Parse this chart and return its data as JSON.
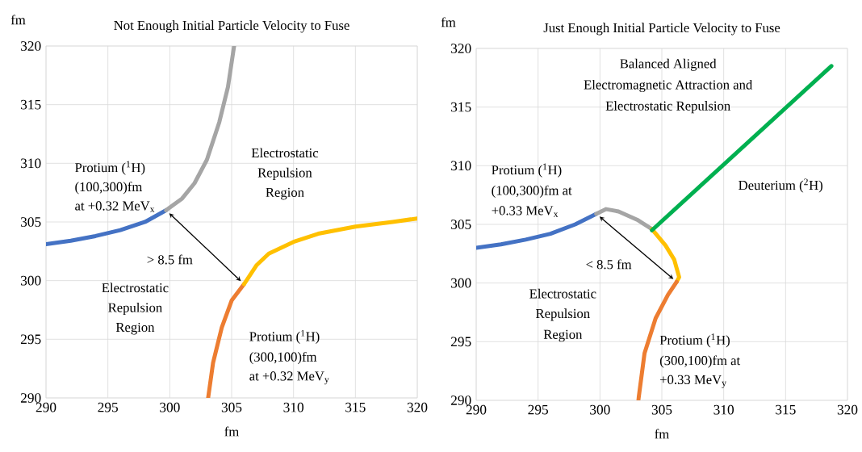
{
  "chart_data": [
    {
      "type": "line",
      "title": "Not Enough Initial Particle Velocity to Fuse",
      "xlabel": "fm",
      "ylabel": "fm",
      "xlim": [
        290,
        320
      ],
      "ylim": [
        290,
        320
      ],
      "xticks": [
        290,
        295,
        300,
        305,
        310,
        315,
        320
      ],
      "yticks": [
        290,
        295,
        300,
        305,
        310,
        315,
        320
      ],
      "grid": true,
      "marker": "none",
      "line_style": "solid",
      "series": [
        {
          "color": "#4472c4",
          "x": [
            290,
            292,
            294,
            296,
            298,
            299.7
          ],
          "values": [
            303.1,
            303.4,
            303.8,
            304.3,
            305.0,
            306.0
          ]
        },
        {
          "color": "#a5a5a5",
          "x": [
            299.7,
            301,
            302,
            303,
            304,
            304.7,
            305.2
          ],
          "values": [
            306.0,
            307.0,
            308.3,
            310.3,
            313.5,
            316.5,
            320
          ]
        },
        {
          "color": "#ed7d31",
          "x": [
            303.1,
            303.5,
            304.2,
            305,
            306
          ],
          "values": [
            290,
            293,
            296,
            298.3,
            299.7
          ]
        },
        {
          "color": "#ffc000",
          "x": [
            306,
            307,
            308,
            310,
            312,
            315,
            318,
            320
          ],
          "values": [
            299.7,
            301.3,
            302.3,
            303.3,
            304.0,
            304.6,
            305.0,
            305.3
          ]
        }
      ],
      "annotations": [
        "Protium ($^{1}$H)",
        "(100,300)fm",
        "at +0.32 MeV$_{x}$",
        "Electrostatic",
        "Repulsion",
        "Region",
        "> 8.5 fm",
        "Electrostatic",
        "Repulsion",
        "Region",
        "Protium ($^{1}$H)",
        "(300,100)fm",
        "at +0.32 MeV$_{y}$"
      ]
    },
    {
      "type": "line",
      "title": "Just Enough Initial Particle Velocity to Fuse",
      "xlabel": "fm",
      "ylabel": "fm",
      "xlim": [
        290,
        320
      ],
      "ylim": [
        290,
        320
      ],
      "xticks": [
        290,
        295,
        300,
        305,
        310,
        315,
        320
      ],
      "yticks": [
        290,
        295,
        300,
        305,
        310,
        315,
        320
      ],
      "grid": true,
      "marker": "none",
      "line_style": "solid",
      "series": [
        {
          "color": "#4472c4",
          "x": [
            290,
            292,
            294,
            296,
            298,
            299.7
          ],
          "values": [
            303.0,
            303.3,
            303.7,
            304.2,
            305.0,
            305.9
          ]
        },
        {
          "color": "#a5a5a5",
          "x": [
            299.7,
            300.5,
            301.5,
            303,
            304.2
          ],
          "values": [
            305.9,
            306.3,
            306.1,
            305.4,
            304.6
          ]
        },
        {
          "color": "#ffc000",
          "x": [
            304.2,
            305.3,
            306,
            306.4,
            306.2
          ],
          "values": [
            304.6,
            303.2,
            302.0,
            300.5,
            300.1
          ]
        },
        {
          "color": "#ed7d31",
          "x": [
            306.2,
            305.5,
            304.5,
            303.6,
            303.1
          ],
          "values": [
            300.1,
            299.0,
            297.0,
            294.0,
            290
          ]
        },
        {
          "color": "#00b050",
          "x": [
            304.2,
            318.7
          ],
          "values": [
            304.5,
            318.5
          ]
        }
      ],
      "annotations": [
        "Balanced Aligned",
        "Electromagnetic Attraction and",
        "Electrostatic Repulsion",
        "Protium ($^{1}$H)",
        "(100,300)fm at",
        "+0.33 MeV$_{x}$",
        "Deuterium ($^{2}$H)",
        "< 8.5 fm",
        "Electrostatic",
        "Repulsion",
        "Region",
        "Protium ($^{1}$H)",
        "(300,100)fm at",
        "+0.33 MeV$_{y}$"
      ]
    }
  ]
}
